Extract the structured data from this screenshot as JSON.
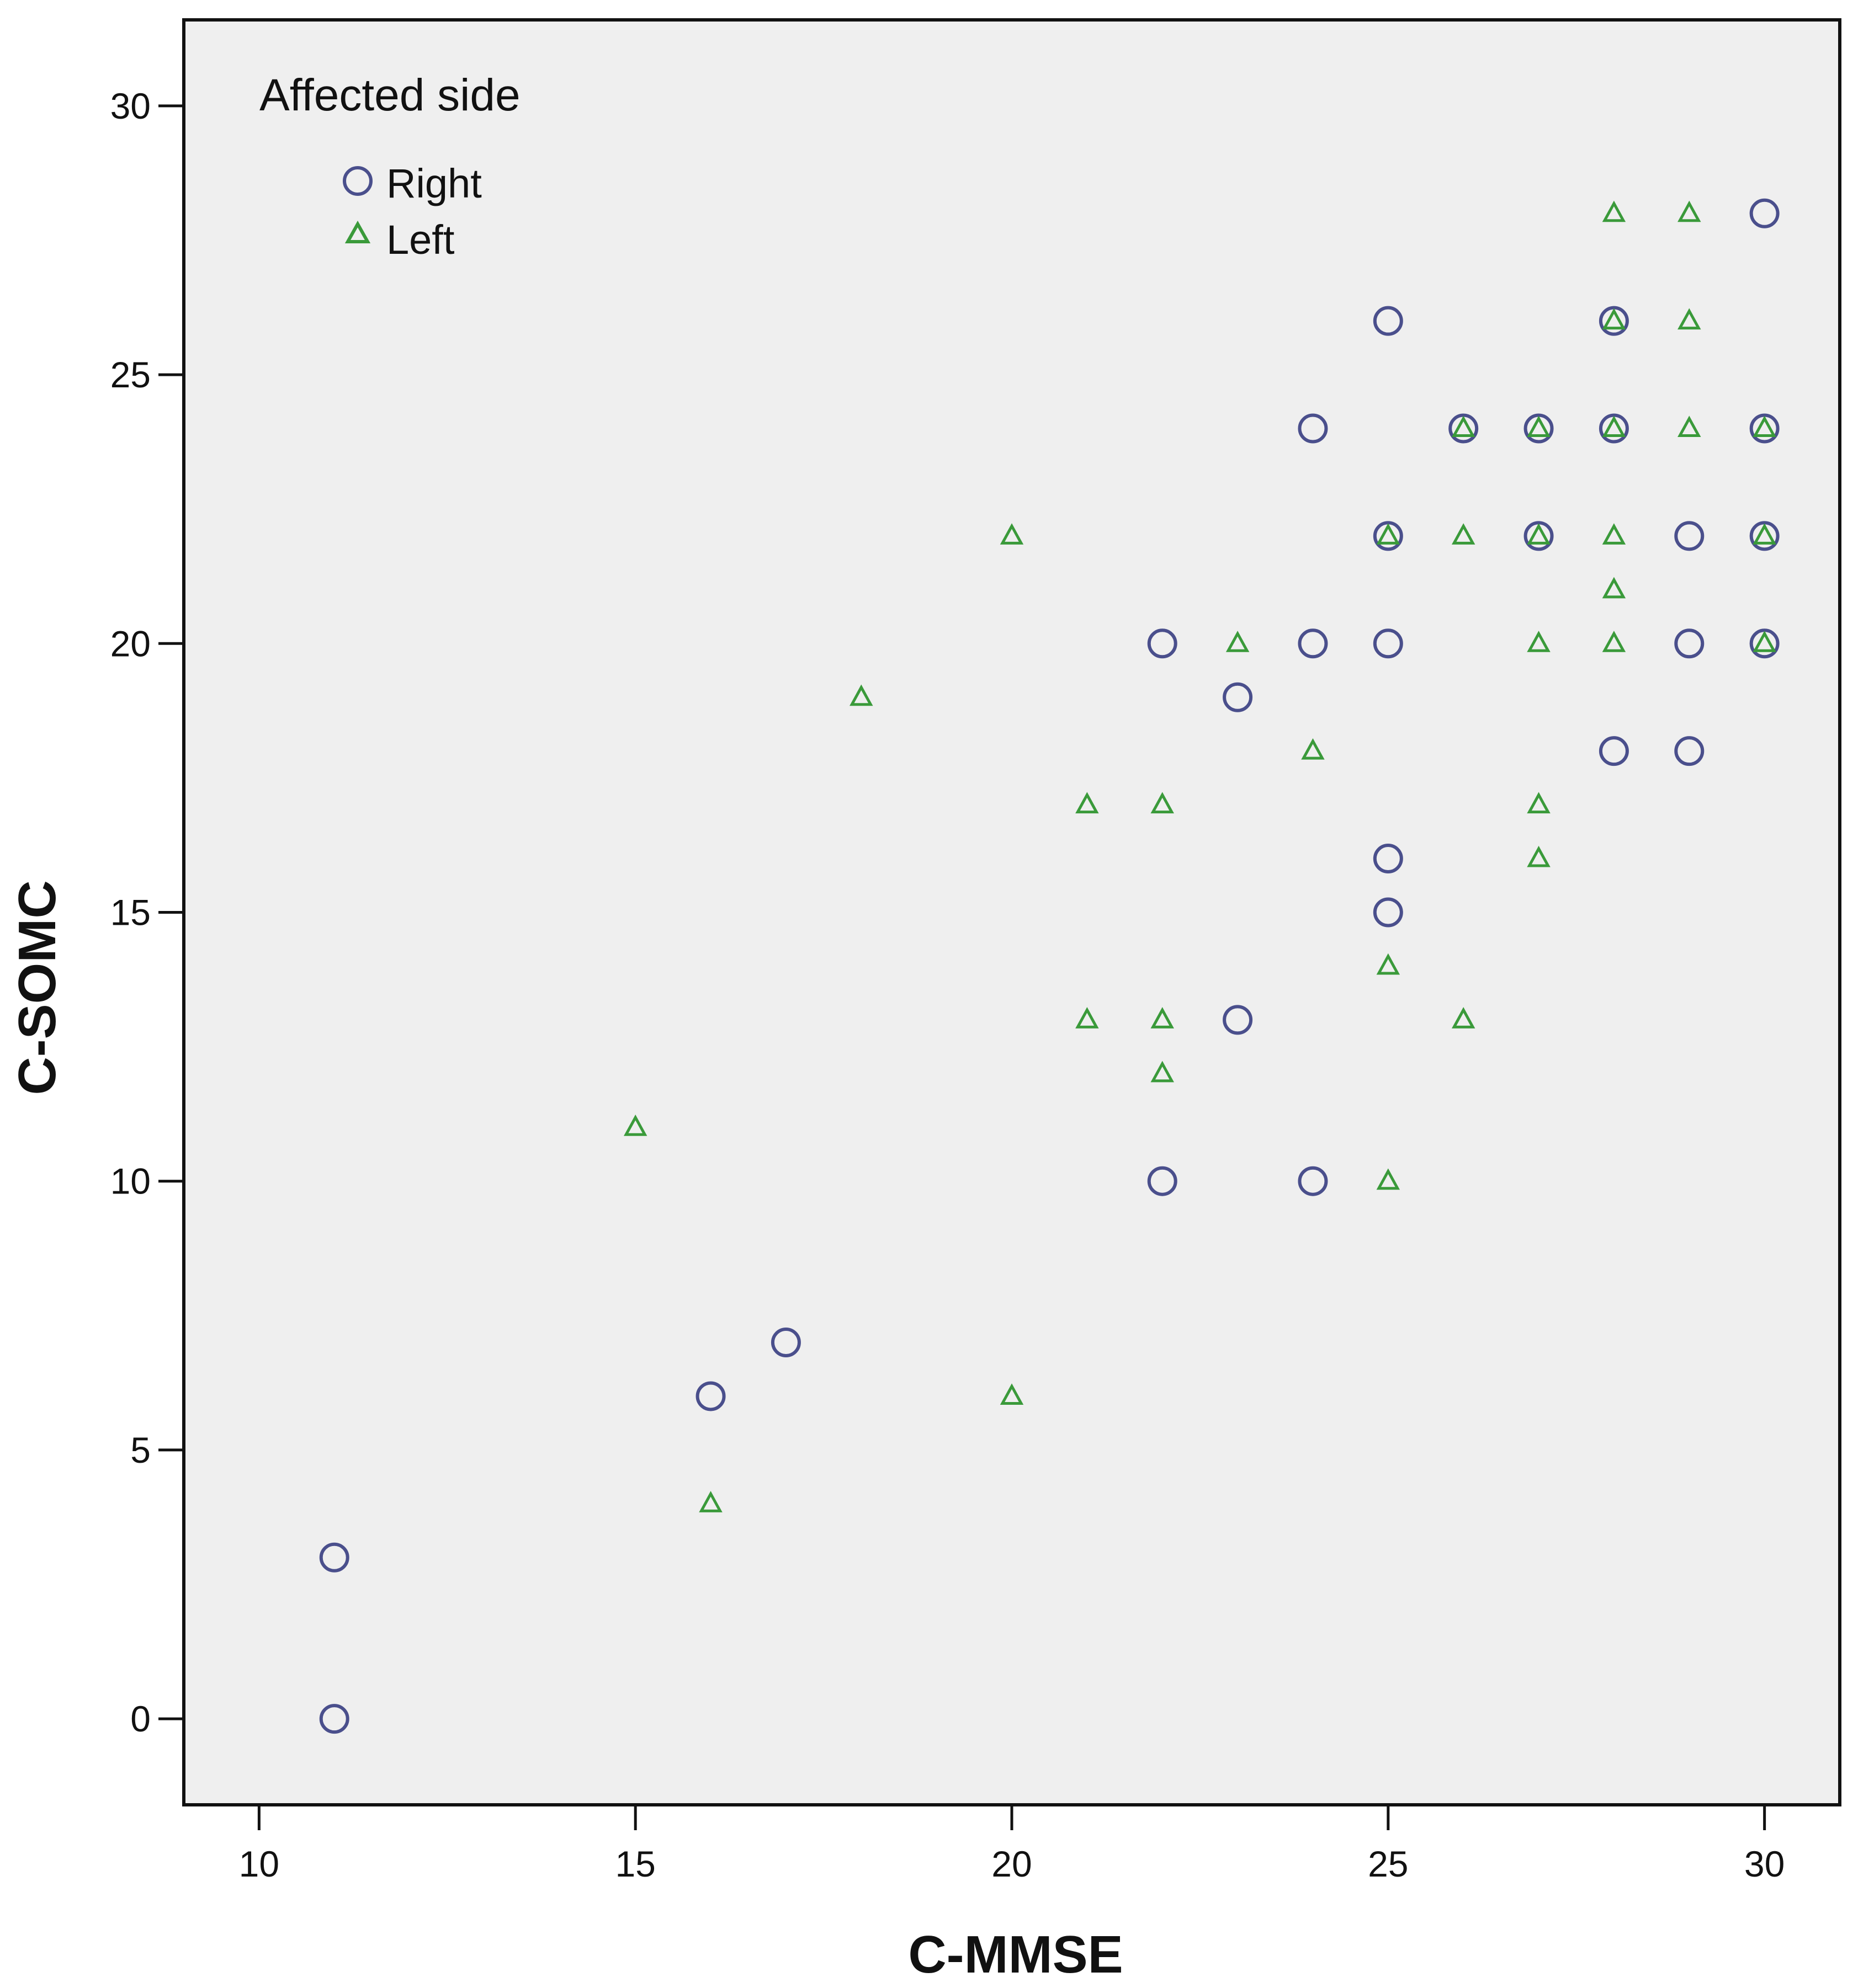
{
  "chart_data": {
    "type": "scatter",
    "title": "",
    "xlabel": "C-MMSE",
    "ylabel": "C-SOMC",
    "xlim": [
      9,
      31
    ],
    "ylim": [
      -1.6,
      31.6
    ],
    "x_ticks": [
      10,
      15,
      20,
      25,
      30
    ],
    "y_ticks": [
      0,
      5,
      10,
      15,
      20,
      25,
      30
    ],
    "grid": false,
    "background_color": "#efefef",
    "legend": {
      "title": "Affected side",
      "placement": "top-left",
      "entries": [
        "Right",
        "Left"
      ]
    },
    "series": [
      {
        "name": "Right",
        "marker": "circle",
        "color": "#4a4f8c",
        "points": [
          [
            11,
            0
          ],
          [
            11,
            3
          ],
          [
            16,
            6
          ],
          [
            17,
            7
          ],
          [
            22,
            10
          ],
          [
            22,
            20
          ],
          [
            23,
            13
          ],
          [
            23,
            19
          ],
          [
            24,
            10
          ],
          [
            24,
            20
          ],
          [
            24,
            24
          ],
          [
            25,
            15
          ],
          [
            25,
            16
          ],
          [
            25,
            20
          ],
          [
            25,
            22
          ],
          [
            25,
            26
          ],
          [
            26,
            24
          ],
          [
            27,
            22
          ],
          [
            27,
            24
          ],
          [
            28,
            18
          ],
          [
            28,
            24
          ],
          [
            28,
            26
          ],
          [
            29,
            18
          ],
          [
            29,
            20
          ],
          [
            29,
            22
          ],
          [
            30,
            20
          ],
          [
            30,
            22
          ],
          [
            30,
            24
          ],
          [
            30,
            28
          ]
        ]
      },
      {
        "name": "Left",
        "marker": "triangle",
        "color": "#3a9a3a",
        "points": [
          [
            15,
            11
          ],
          [
            16,
            4
          ],
          [
            18,
            19
          ],
          [
            20,
            6
          ],
          [
            20,
            22
          ],
          [
            21,
            13
          ],
          [
            21,
            17
          ],
          [
            22,
            12
          ],
          [
            22,
            13
          ],
          [
            22,
            17
          ],
          [
            23,
            20
          ],
          [
            24,
            18
          ],
          [
            25,
            10
          ],
          [
            25,
            14
          ],
          [
            25,
            22
          ],
          [
            26,
            13
          ],
          [
            26,
            22
          ],
          [
            26,
            24
          ],
          [
            27,
            16
          ],
          [
            27,
            17
          ],
          [
            27,
            20
          ],
          [
            27,
            22
          ],
          [
            27,
            24
          ],
          [
            28,
            20
          ],
          [
            28,
            21
          ],
          [
            28,
            22
          ],
          [
            28,
            24
          ],
          [
            28,
            26
          ],
          [
            28,
            28
          ],
          [
            29,
            24
          ],
          [
            29,
            26
          ],
          [
            29,
            28
          ],
          [
            30,
            20
          ],
          [
            30,
            22
          ],
          [
            30,
            24
          ]
        ]
      }
    ]
  }
}
